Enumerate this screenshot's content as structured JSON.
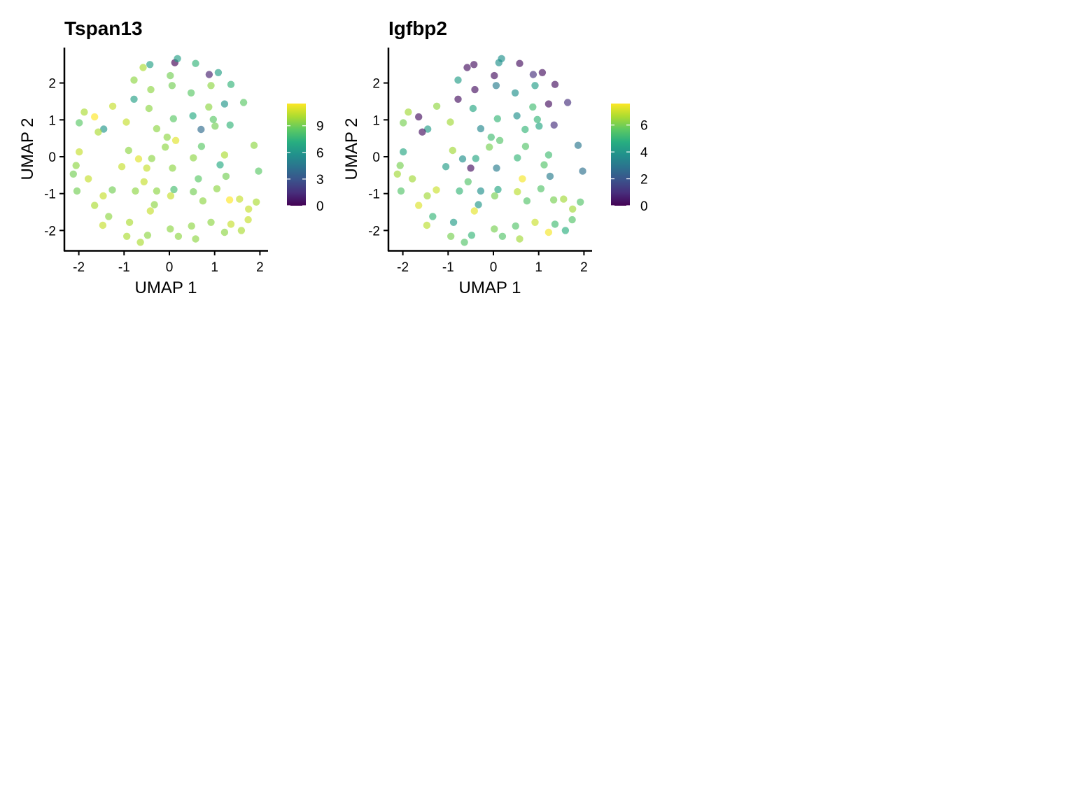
{
  "chart_data": [
    {
      "type": "scatter",
      "title": "Tspan13",
      "xlabel": "UMAP 1",
      "ylabel": "UMAP 2",
      "xlim": [
        -2.35,
        2.2
      ],
      "ylim": [
        -2.55,
        2.95
      ],
      "xticks": [
        "-2",
        "-1",
        "0",
        "1",
        "2"
      ],
      "yticks": [
        "-2",
        "-1",
        "0",
        "1",
        "2"
      ],
      "grid": false,
      "legend": "right",
      "colorscale": "viridis",
      "color_range": [
        0,
        11.5
      ],
      "colorbar_ticks": [
        "0",
        "3",
        "6",
        "9"
      ],
      "points": [
        [
          0.12,
          2.55,
          0
        ],
        [
          0.18,
          2.66,
          6.5
        ],
        [
          0.58,
          2.53,
          7.5
        ],
        [
          -0.43,
          2.5,
          6.5
        ],
        [
          -0.58,
          2.42,
          10
        ],
        [
          0.88,
          2.23,
          1
        ],
        [
          1.08,
          2.28,
          6.5
        ],
        [
          0.02,
          2.2,
          9
        ],
        [
          -0.78,
          2.08,
          9.5
        ],
        [
          0.06,
          1.93,
          9
        ],
        [
          0.92,
          1.93,
          9.5
        ],
        [
          1.36,
          1.96,
          7.5
        ],
        [
          -0.41,
          1.82,
          9.5
        ],
        [
          0.48,
          1.73,
          8.5
        ],
        [
          -0.78,
          1.56,
          6.5
        ],
        [
          1.22,
          1.43,
          6
        ],
        [
          1.64,
          1.47,
          8.5
        ],
        [
          -1.25,
          1.37,
          10.5
        ],
        [
          -0.45,
          1.31,
          9.5
        ],
        [
          0.87,
          1.35,
          9.5
        ],
        [
          -1.88,
          1.21,
          10
        ],
        [
          -1.65,
          1.08,
          11.5
        ],
        [
          0.52,
          1.11,
          7
        ],
        [
          0.09,
          1.03,
          8.5
        ],
        [
          0.97,
          1.01,
          8.5
        ],
        [
          -1.99,
          0.92,
          8.5
        ],
        [
          -0.95,
          0.94,
          10.5
        ],
        [
          1.01,
          0.83,
          9
        ],
        [
          1.34,
          0.86,
          7.5
        ],
        [
          -1.45,
          0.75,
          6
        ],
        [
          -1.57,
          0.67,
          10
        ],
        [
          -0.28,
          0.76,
          9.5
        ],
        [
          0.7,
          0.74,
          4
        ],
        [
          -0.05,
          0.53,
          9.5
        ],
        [
          0.14,
          0.44,
          11
        ],
        [
          -0.09,
          0.26,
          9.5
        ],
        [
          0.71,
          0.28,
          8.5
        ],
        [
          1.87,
          0.31,
          9.5
        ],
        [
          -1.99,
          0.13,
          10.5
        ],
        [
          -0.9,
          0.17,
          9.5
        ],
        [
          1.22,
          0.05,
          10
        ],
        [
          -0.68,
          -0.06,
          11
        ],
        [
          -0.39,
          -0.05,
          9.5
        ],
        [
          0.53,
          -0.03,
          9.5
        ],
        [
          -2.06,
          -0.24,
          9.5
        ],
        [
          -1.05,
          -0.27,
          10.5
        ],
        [
          -0.5,
          -0.31,
          10.5
        ],
        [
          0.07,
          -0.31,
          9.5
        ],
        [
          1.12,
          -0.22,
          7
        ],
        [
          1.97,
          -0.39,
          8.5
        ],
        [
          -2.12,
          -0.47,
          9
        ],
        [
          -1.79,
          -0.6,
          10.5
        ],
        [
          0.64,
          -0.6,
          8.5
        ],
        [
          1.25,
          -0.53,
          9
        ],
        [
          -0.56,
          -0.68,
          10.5
        ],
        [
          -2.04,
          -0.93,
          9
        ],
        [
          -1.26,
          -0.9,
          9
        ],
        [
          -0.75,
          -0.93,
          9.5
        ],
        [
          -0.28,
          -0.93,
          9.5
        ],
        [
          0.1,
          -0.89,
          8
        ],
        [
          0.53,
          -0.95,
          9
        ],
        [
          1.05,
          -0.87,
          9.5
        ],
        [
          -1.46,
          -1.06,
          10.5
        ],
        [
          0.03,
          -1.06,
          10.5
        ],
        [
          -1.65,
          -1.32,
          10
        ],
        [
          -0.33,
          -1.3,
          9.5
        ],
        [
          0.74,
          -1.2,
          9.5
        ],
        [
          1.33,
          -1.17,
          11.5
        ],
        [
          1.55,
          -1.15,
          10.5
        ],
        [
          1.92,
          -1.23,
          10
        ],
        [
          -0.42,
          -1.47,
          10.5
        ],
        [
          1.75,
          -1.42,
          10.5
        ],
        [
          -1.34,
          -1.62,
          9.5
        ],
        [
          -1.47,
          -1.86,
          10.5
        ],
        [
          -0.88,
          -1.78,
          10
        ],
        [
          0.92,
          -1.78,
          9.5
        ],
        [
          1.36,
          -1.83,
          10.5
        ],
        [
          1.74,
          -1.71,
          10.5
        ],
        [
          0.49,
          -1.88,
          9.5
        ],
        [
          0.02,
          -1.96,
          9.5
        ],
        [
          1.22,
          -2.05,
          9.5
        ],
        [
          1.59,
          -2.0,
          10
        ],
        [
          -0.94,
          -2.16,
          10
        ],
        [
          -0.48,
          -2.13,
          9.5
        ],
        [
          0.2,
          -2.16,
          9.5
        ],
        [
          0.58,
          -2.23,
          9.5
        ],
        [
          -0.64,
          -2.32,
          10
        ]
      ]
    },
    {
      "type": "scatter",
      "title": "Igfbp2",
      "xlabel": "UMAP 1",
      "ylabel": "UMAP 2",
      "xlim": [
        -2.35,
        2.2
      ],
      "ylim": [
        -2.55,
        2.95
      ],
      "xticks": [
        "-2",
        "-1",
        "0",
        "1",
        "2"
      ],
      "yticks": [
        "-2",
        "-1",
        "0",
        "1",
        "2"
      ],
      "grid": false,
      "legend": "right",
      "colorscale": "viridis",
      "color_range": [
        0,
        7.6
      ],
      "colorbar_ticks": [
        "0",
        "2",
        "4",
        "6"
      ],
      "points": [
        [
          0.18,
          2.66,
          3.8
        ],
        [
          0.58,
          2.53,
          0.3
        ],
        [
          0.12,
          2.55,
          3.8
        ],
        [
          -0.43,
          2.5,
          0.3
        ],
        [
          -0.58,
          2.42,
          0.3
        ],
        [
          0.88,
          2.23,
          1
        ],
        [
          1.08,
          2.28,
          0.3
        ],
        [
          0.02,
          2.2,
          0.3
        ],
        [
          -0.78,
          2.08,
          4.2
        ],
        [
          0.06,
          1.93,
          3.2
        ],
        [
          0.92,
          1.93,
          4.2
        ],
        [
          1.36,
          1.96,
          0.3
        ],
        [
          -0.41,
          1.82,
          0.3
        ],
        [
          0.48,
          1.73,
          3.8
        ],
        [
          -0.78,
          1.56,
          0.3
        ],
        [
          1.22,
          1.43,
          0.3
        ],
        [
          1.64,
          1.47,
          1
        ],
        [
          -1.25,
          1.37,
          6.3
        ],
        [
          -0.45,
          1.31,
          4.5
        ],
        [
          0.87,
          1.35,
          5.2
        ],
        [
          -1.88,
          1.21,
          6.5
        ],
        [
          -1.65,
          1.08,
          0.3
        ],
        [
          0.52,
          1.11,
          3.8
        ],
        [
          0.09,
          1.03,
          5
        ],
        [
          0.97,
          1.01,
          5
        ],
        [
          -1.99,
          0.92,
          6
        ],
        [
          -0.95,
          0.94,
          6.5
        ],
        [
          1.01,
          0.83,
          4.5
        ],
        [
          1.34,
          0.86,
          1
        ],
        [
          -1.45,
          0.75,
          4.2
        ],
        [
          -1.57,
          0.67,
          0.3
        ],
        [
          -0.28,
          0.76,
          3.5
        ],
        [
          0.7,
          0.74,
          5
        ],
        [
          -0.05,
          0.53,
          5.2
        ],
        [
          0.14,
          0.44,
          5.5
        ],
        [
          -0.09,
          0.26,
          6
        ],
        [
          0.71,
          0.28,
          5.5
        ],
        [
          1.87,
          0.31,
          3
        ],
        [
          -1.99,
          0.13,
          4.5
        ],
        [
          -0.9,
          0.17,
          6.5
        ],
        [
          1.22,
          0.05,
          5.2
        ],
        [
          -0.68,
          -0.06,
          3.8
        ],
        [
          -0.39,
          -0.05,
          4.5
        ],
        [
          0.53,
          -0.03,
          5
        ],
        [
          -2.06,
          -0.24,
          6
        ],
        [
          -1.05,
          -0.27,
          4.2
        ],
        [
          -0.5,
          -0.31,
          0.3
        ],
        [
          0.07,
          -0.31,
          3.2
        ],
        [
          1.12,
          -0.22,
          5.5
        ],
        [
          1.97,
          -0.39,
          2.8
        ],
        [
          -2.12,
          -0.47,
          6.5
        ],
        [
          -1.79,
          -0.6,
          6.5
        ],
        [
          0.64,
          -0.6,
          7.5
        ],
        [
          1.25,
          -0.53,
          3.2
        ],
        [
          -0.56,
          -0.68,
          5.5
        ],
        [
          -2.04,
          -0.93,
          5.5
        ],
        [
          -1.26,
          -0.9,
          7
        ],
        [
          -0.75,
          -0.93,
          5
        ],
        [
          -0.28,
          -0.93,
          3.8
        ],
        [
          0.1,
          -0.89,
          4.5
        ],
        [
          0.53,
          -0.95,
          6.8
        ],
        [
          1.05,
          -0.87,
          5.5
        ],
        [
          -1.46,
          -1.06,
          6.5
        ],
        [
          0.03,
          -1.06,
          6
        ],
        [
          -1.65,
          -1.32,
          7.2
        ],
        [
          -0.33,
          -1.3,
          4
        ],
        [
          0.74,
          -1.2,
          5.5
        ],
        [
          1.33,
          -1.17,
          6
        ],
        [
          1.55,
          -1.15,
          6.5
        ],
        [
          1.92,
          -1.23,
          5.5
        ],
        [
          -0.42,
          -1.47,
          7.3
        ],
        [
          1.75,
          -1.42,
          6.5
        ],
        [
          -1.34,
          -1.62,
          5
        ],
        [
          -1.47,
          -1.86,
          6.8
        ],
        [
          -0.88,
          -1.78,
          4.2
        ],
        [
          0.92,
          -1.78,
          7
        ],
        [
          1.36,
          -1.83,
          5.2
        ],
        [
          1.74,
          -1.71,
          5.5
        ],
        [
          0.49,
          -1.88,
          5.5
        ],
        [
          0.02,
          -1.96,
          6
        ],
        [
          1.22,
          -2.05,
          7.5
        ],
        [
          1.59,
          -2.0,
          4.8
        ],
        [
          -0.94,
          -2.16,
          6
        ],
        [
          -0.48,
          -2.13,
          5
        ],
        [
          0.2,
          -2.16,
          5.5
        ],
        [
          0.58,
          -2.23,
          6.5
        ],
        [
          -0.64,
          -2.32,
          5.5
        ]
      ]
    }
  ]
}
